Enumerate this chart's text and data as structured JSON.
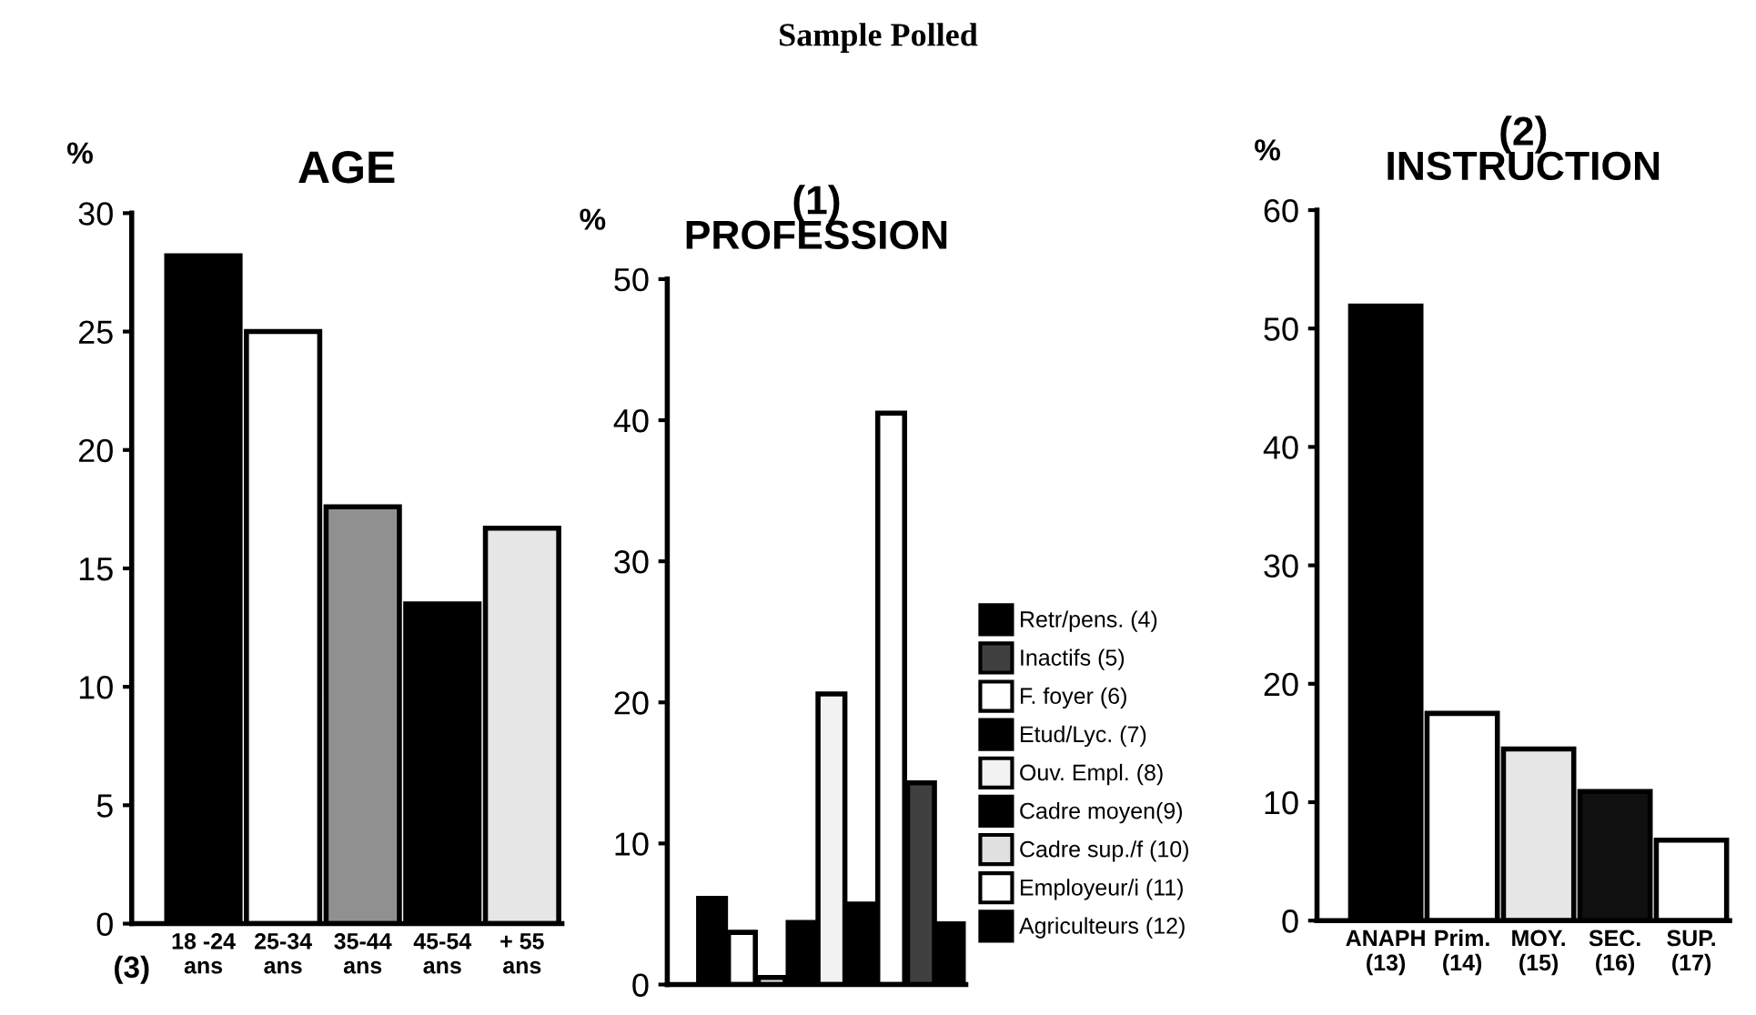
{
  "chart_data": [
    {
      "type": "bar",
      "title": "AGE",
      "ylabel": "%",
      "annotations": [
        "Sample Polled",
        "(3)"
      ],
      "categories": [
        "18 -24\nans",
        "25-34\nans",
        "35-44\nans",
        "45-54\nans",
        "+ 55\nans"
      ],
      "values": [
        28.2,
        25,
        17.6,
        13.5,
        16.7
      ],
      "colors": [
        "#000000",
        "#ffffff",
        "#909090",
        "#000000",
        "#e6e6e6"
      ],
      "ylim": [
        0,
        30
      ],
      "yticks": [
        0,
        5,
        10,
        15,
        20,
        25,
        30
      ],
      "grid": false
    },
    {
      "type": "bar",
      "title": "(1)\nPROFESSION",
      "ylabel": "%",
      "categories": [
        null,
        null,
        null,
        null,
        null,
        null,
        null,
        null,
        null
      ],
      "series": [
        {
          "name": "Agriculteurs (12)",
          "color": "#000000",
          "values": [
            6.1,
            null,
            null,
            null,
            null,
            null,
            null,
            null,
            null
          ]
        },
        {
          "name": "Employeur/i (11)",
          "color": "#ffffff",
          "values": [
            null,
            3.7,
            null,
            null,
            null,
            null,
            null,
            null,
            null
          ]
        },
        {
          "name": "Cadre sup./f (10)",
          "color": "#e0e0e0",
          "values": [
            null,
            null,
            0.5,
            null,
            null,
            null,
            null,
            null,
            null
          ]
        },
        {
          "name": "Cadre moyen(9)",
          "color": "#000000",
          "values": [
            null,
            null,
            null,
            4.4,
            null,
            null,
            null,
            null,
            null
          ]
        },
        {
          "name": "Ouv. Empl. (8)",
          "color": "#f2f2f2",
          "values": [
            null,
            null,
            null,
            null,
            20.6,
            null,
            null,
            null,
            null
          ]
        },
        {
          "name": "Etud/Lyc. (7)",
          "color": "#000000",
          "values": [
            null,
            null,
            null,
            null,
            null,
            5.7,
            null,
            null,
            null
          ]
        },
        {
          "name": "F. foyer (6)",
          "color": "#ffffff",
          "values": [
            null,
            null,
            null,
            null,
            null,
            null,
            40.5,
            null,
            null
          ]
        },
        {
          "name": "Inactifs (5)",
          "color": "#404040",
          "values": [
            null,
            null,
            null,
            null,
            null,
            null,
            null,
            14.3,
            null
          ]
        },
        {
          "name": "Retr/pens. (4)",
          "color": "#000000",
          "values": [
            null,
            null,
            null,
            null,
            null,
            null,
            null,
            null,
            4.3
          ]
        }
      ],
      "ylim": [
        0,
        50
      ],
      "yticks": [
        0,
        10,
        20,
        30,
        40,
        50
      ],
      "legend": "right",
      "stacked": true,
      "grid": false
    },
    {
      "type": "bar",
      "title": "(2)\nINSTRUCTION",
      "ylabel": "%",
      "categories": [
        "ANAPH\n(13)",
        "Prim.\n(14)",
        "MOY.\n(15)",
        "SEC.\n(16)",
        "SUP.\n(17)"
      ],
      "values": [
        51.9,
        17.5,
        14.5,
        10.9,
        6.8
      ],
      "colors": [
        "#000000",
        "#ffffff",
        "#e6e6e6",
        "#101010",
        "#ffffff"
      ],
      "ylim": [
        0,
        60
      ],
      "yticks": [
        0,
        10,
        20,
        30,
        40,
        50,
        60
      ],
      "grid": false
    }
  ]
}
